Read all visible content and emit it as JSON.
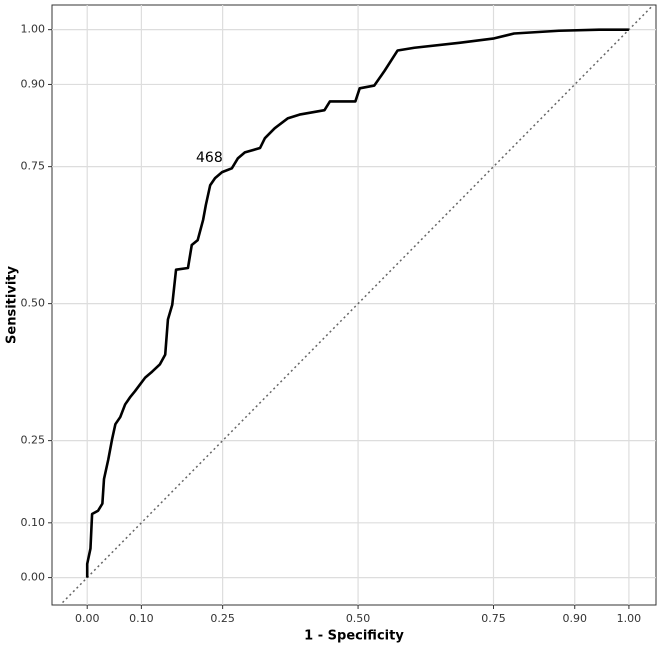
{
  "chart_data": {
    "type": "line",
    "x_label": "1 - Specificity",
    "y_label": "Sensitivity",
    "annotation": "468",
    "grid": true,
    "xlim": [
      -0.065,
      1.05
    ],
    "ylim": [
      -0.05,
      1.045
    ],
    "xticks": [
      {
        "value": 0,
        "label": "0.00"
      },
      {
        "value": 0.1,
        "label": "0.10"
      },
      {
        "value": 0.25,
        "label": "0.25"
      },
      {
        "value": 0.5,
        "label": "0.50"
      },
      {
        "value": 0.75,
        "label": "0.75"
      },
      {
        "value": 0.9,
        "label": "0.90"
      },
      {
        "value": 1,
        "label": "1.00"
      }
    ],
    "yticks": [
      {
        "value": 0,
        "label": "0.00"
      },
      {
        "value": 0.1,
        "label": "0.10"
      },
      {
        "value": 0.25,
        "label": "0.25"
      },
      {
        "value": 0.5,
        "label": "0.50"
      },
      {
        "value": 0.75,
        "label": "0.75"
      },
      {
        "value": 0.9,
        "label": "0.90"
      },
      {
        "value": 1,
        "label": "1.00"
      }
    ],
    "x": [
      0,
      0.0,
      0.006,
      0.009,
      0.02,
      0.028,
      0.031,
      0.039,
      0.046,
      0.052,
      0.061,
      0.07,
      0.079,
      0.088,
      0.107,
      0.12,
      0.134,
      0.144,
      0.149,
      0.157,
      0.164,
      0.186,
      0.193,
      0.204,
      0.214,
      0.219,
      0.227,
      0.236,
      0.249,
      0.267,
      0.278,
      0.291,
      0.319,
      0.328,
      0.346,
      0.37,
      0.392,
      0.438,
      0.448,
      0.495,
      0.503,
      0.53,
      0.549,
      0.573,
      0.604,
      0.687,
      0.751,
      0.788,
      0.871,
      0.945,
      1.0
    ],
    "series": [
      {
        "color": "#000000",
        "values": [
          0,
          0.025,
          0.053,
          0.116,
          0.122,
          0.135,
          0.18,
          0.216,
          0.253,
          0.28,
          0.293,
          0.316,
          0.329,
          0.34,
          0.365,
          0.376,
          0.389,
          0.407,
          0.471,
          0.498,
          0.562,
          0.565,
          0.607,
          0.616,
          0.653,
          0.68,
          0.716,
          0.729,
          0.74,
          0.747,
          0.765,
          0.776,
          0.784,
          0.802,
          0.82,
          0.838,
          0.845,
          0.853,
          0.869,
          0.869,
          0.893,
          0.898,
          0.925,
          0.962,
          0.967,
          0.976,
          0.984,
          0.993,
          0.998,
          1.0,
          1.0
        ]
      }
    ]
  }
}
